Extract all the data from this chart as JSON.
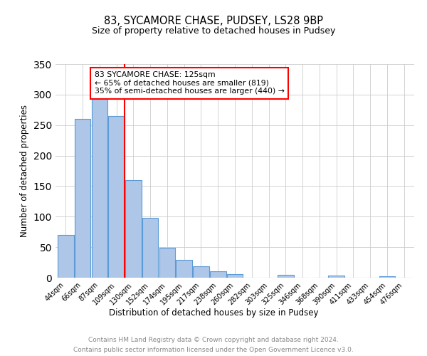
{
  "title": "83, SYCAMORE CHASE, PUDSEY, LS28 9BP",
  "subtitle": "Size of property relative to detached houses in Pudsey",
  "xlabel": "Distribution of detached houses by size in Pudsey",
  "ylabel": "Number of detached properties",
  "bin_labels": [
    "44sqm",
    "66sqm",
    "87sqm",
    "109sqm",
    "130sqm",
    "152sqm",
    "174sqm",
    "195sqm",
    "217sqm",
    "238sqm",
    "260sqm",
    "282sqm",
    "303sqm",
    "325sqm",
    "346sqm",
    "368sqm",
    "390sqm",
    "411sqm",
    "433sqm",
    "454sqm",
    "476sqm"
  ],
  "bar_heights": [
    70,
    260,
    293,
    265,
    160,
    98,
    49,
    29,
    19,
    10,
    6,
    0,
    0,
    5,
    0,
    0,
    3,
    0,
    0,
    2,
    0
  ],
  "bar_color": "#aec6e8",
  "bar_edge_color": "#5b9bd5",
  "vline_x_idx": 3.5,
  "vline_color": "red",
  "annotation_title": "83 SYCAMORE CHASE: 125sqm",
  "annotation_line1": "← 65% of detached houses are smaller (819)",
  "annotation_line2": "35% of semi-detached houses are larger (440) →",
  "annotation_box_color": "white",
  "annotation_box_edge": "red",
  "ylim": [
    0,
    350
  ],
  "yticks": [
    0,
    50,
    100,
    150,
    200,
    250,
    300,
    350
  ],
  "footer_line1": "Contains HM Land Registry data © Crown copyright and database right 2024.",
  "footer_line2": "Contains public sector information licensed under the Open Government Licence v3.0.",
  "footer_color": "#888888",
  "background_color": "#ffffff",
  "grid_color": "#cccccc"
}
